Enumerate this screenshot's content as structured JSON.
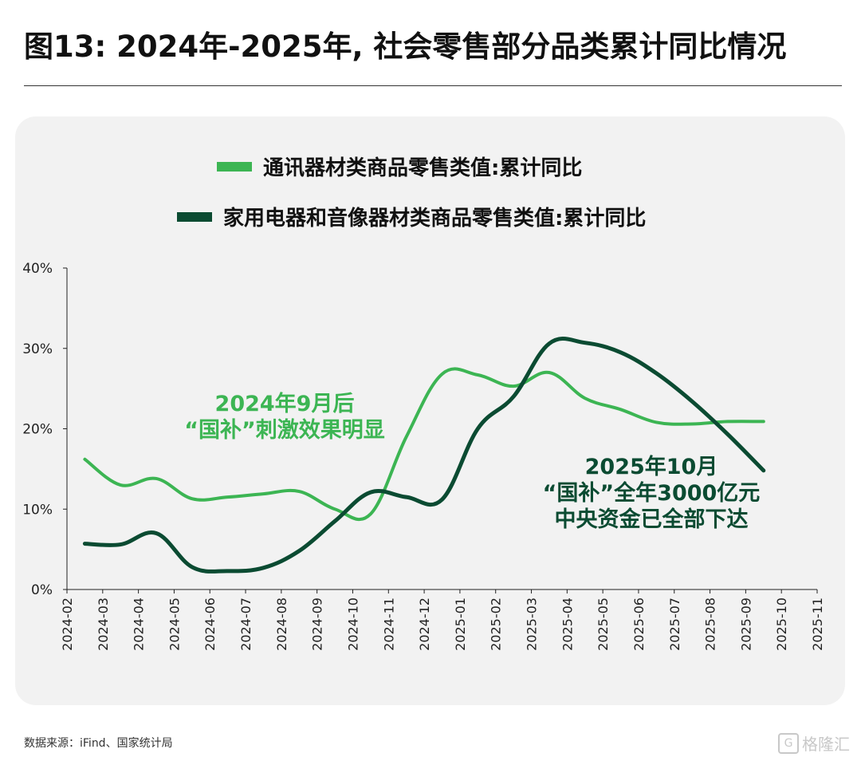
{
  "title": "图13: 2024年-2025年, 社会零售部分品类累计同比情况",
  "source": "数据来源：iFind、国家统计局",
  "watermark": "格隆汇",
  "colors": {
    "light_green": "#3cb553",
    "dark_green": "#0b4b32",
    "background_card": "#f2f2f2"
  },
  "chart_data": {
    "type": "line",
    "title": "",
    "xlabel": "",
    "ylabel": "",
    "ylim": [
      0,
      40
    ],
    "yticks": [
      "0%",
      "10%",
      "20%",
      "30%",
      "40%"
    ],
    "x_ticks": [
      "2024-02",
      "2024-03",
      "2024-04",
      "2024-05",
      "2024-06",
      "2024-07",
      "2024-08",
      "2024-09",
      "2024-10",
      "2024-11",
      "2024-12",
      "2025-01",
      "2025-02",
      "2025-03",
      "2025-04",
      "2025-05",
      "2025-06",
      "2025-07",
      "2025-08",
      "2025-09",
      "2025-10",
      "2025-11"
    ],
    "x": [
      "2024-03",
      "2024-04",
      "2024-05",
      "2024-06",
      "2024-07",
      "2024-08",
      "2024-09",
      "2024-10",
      "2024-11",
      "2024-12",
      "2025-01",
      "2025-02",
      "2025-03",
      "2025-04",
      "2025-05",
      "2025-06",
      "2025-07",
      "2025-08",
      "2025-09",
      "2025-10",
      "2025-11"
    ],
    "legend_position": "top-center",
    "series": [
      {
        "name": "通讯器材类商品零售类值:累计同比",
        "color": "#3cb553",
        "values": [
          16.2,
          13.0,
          13.8,
          11.3,
          11.5,
          11.9,
          12.2,
          10.0,
          9.4,
          19.0,
          26.8,
          26.7,
          25.3,
          27.0,
          23.8,
          22.4,
          20.8,
          20.6,
          20.9,
          20.9,
          null
        ]
      },
      {
        "name": "家用电器和音像器材类商品零售类值:累计同比",
        "color": "#0b4b32",
        "values": [
          5.7,
          5.6,
          7.0,
          2.8,
          2.3,
          2.7,
          4.8,
          8.5,
          12.1,
          11.5,
          11.2,
          20.0,
          24.0,
          30.6,
          30.7,
          29.5,
          26.9,
          23.4,
          19.3,
          14.8,
          null
        ]
      }
    ],
    "annotations": [
      {
        "lines": [
          "2024年9月后",
          "“国补”刺激效果明显"
        ],
        "color": "#3cb553"
      },
      {
        "lines": [
          "2025年10月",
          "“国补”全年3000亿元",
          "中央资金已全部下达"
        ],
        "color": "#0b4b32"
      }
    ]
  }
}
